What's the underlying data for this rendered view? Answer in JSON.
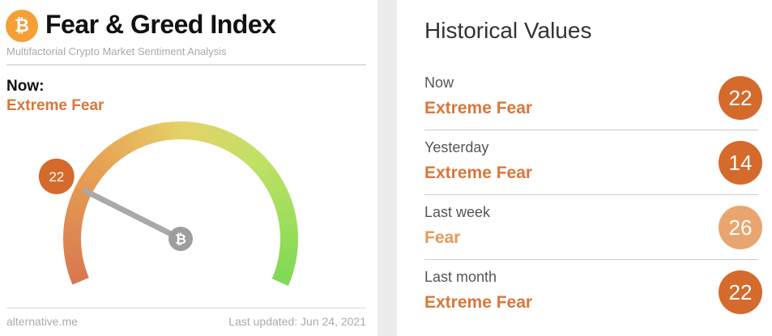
{
  "header": {
    "logo_icon": "bitcoin-icon",
    "logo_glyph": "₿",
    "title": "Fear & Greed Index",
    "subtitle": "Multifactorial Crypto Market Sentiment Analysis"
  },
  "now": {
    "label": "Now:",
    "classification": "Extreme Fear",
    "value": 22,
    "value_text": "22",
    "badge_color": "#d46a2c"
  },
  "gauge": {
    "min": 0,
    "max": 100,
    "needle_icon": "bitcoin-icon",
    "needle_glyph": "₿"
  },
  "footer": {
    "source": "alternative.me",
    "updated": "Last updated: Jun 24, 2021"
  },
  "historical": {
    "title": "Historical Values",
    "rows": [
      {
        "label": "Now",
        "classification": "Extreme Fear",
        "value": "22",
        "color": "#d46a2c",
        "text_color": "#d9773b"
      },
      {
        "label": "Yesterday",
        "classification": "Extreme Fear",
        "value": "14",
        "color": "#d46a2c",
        "text_color": "#d9773b"
      },
      {
        "label": "Last week",
        "classification": "Fear",
        "value": "26",
        "color": "#e9a56f",
        "text_color": "#e8995a"
      },
      {
        "label": "Last month",
        "classification": "Extreme Fear",
        "value": "22",
        "color": "#d46a2c",
        "text_color": "#d9773b"
      }
    ]
  }
}
